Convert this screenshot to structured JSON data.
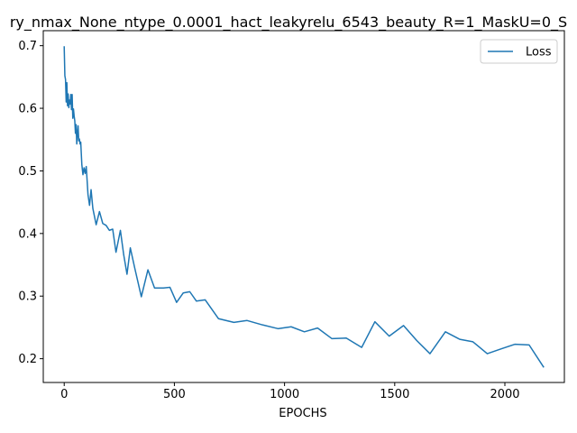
{
  "chart_data": {
    "type": "line",
    "title": "ry_nmax_None_ntype_0.0001_hact_leakyrelu_6543_beauty_R=1_MaskU=0_S",
    "xlabel": "EPOCHS",
    "ylabel": "",
    "xlim": [
      -95,
      2270
    ],
    "ylim": [
      0.162,
      0.724
    ],
    "xticks": [
      0,
      500,
      1000,
      1500,
      2000
    ],
    "xtick_labels": [
      "0",
      "500",
      "1000",
      "1500",
      "2000"
    ],
    "yticks": [
      0.2,
      0.3,
      0.4,
      0.5,
      0.6,
      0.7
    ],
    "ytick_labels": [
      "0.2",
      "0.3",
      "0.4",
      "0.5",
      "0.6",
      "0.7"
    ],
    "grid": false,
    "legend_position": "top-right",
    "line_color": "#1f77b4",
    "series": [
      {
        "name": "Loss",
        "x": [
          0,
          3,
          6,
          9,
          12,
          15,
          18,
          21,
          24,
          27,
          30,
          33,
          36,
          39,
          42,
          45,
          48,
          51,
          54,
          57,
          60,
          63,
          66,
          69,
          72,
          75,
          80,
          85,
          90,
          95,
          100,
          108,
          115,
          122,
          130,
          145,
          160,
          175,
          190,
          205,
          220,
          235,
          255,
          270,
          285,
          300,
          320,
          350,
          380,
          410,
          450,
          480,
          510,
          540,
          570,
          600,
          640,
          700,
          770,
          830,
          900,
          970,
          1030,
          1090,
          1150,
          1215,
          1280,
          1350,
          1410,
          1475,
          1540,
          1600,
          1660,
          1730,
          1795,
          1855,
          1920,
          1985,
          2045,
          2110,
          2175
        ],
        "y": [
          0.698,
          0.652,
          0.646,
          0.61,
          0.641,
          0.604,
          0.623,
          0.601,
          0.613,
          0.607,
          0.622,
          0.598,
          0.622,
          0.584,
          0.599,
          0.588,
          0.58,
          0.56,
          0.574,
          0.543,
          0.56,
          0.572,
          0.548,
          0.551,
          0.543,
          0.546,
          0.51,
          0.494,
          0.505,
          0.496,
          0.507,
          0.462,
          0.445,
          0.47,
          0.44,
          0.414,
          0.435,
          0.416,
          0.413,
          0.405,
          0.407,
          0.37,
          0.405,
          0.366,
          0.335,
          0.377,
          0.345,
          0.299,
          0.342,
          0.313,
          0.313,
          0.314,
          0.29,
          0.305,
          0.307,
          0.292,
          0.294,
          0.264,
          0.258,
          0.261,
          0.254,
          0.248,
          0.251,
          0.243,
          0.249,
          0.232,
          0.233,
          0.218,
          0.259,
          0.236,
          0.253,
          0.229,
          0.208,
          0.243,
          0.231,
          0.227,
          0.208,
          0.216,
          0.223,
          0.222,
          0.187
        ]
      }
    ]
  }
}
